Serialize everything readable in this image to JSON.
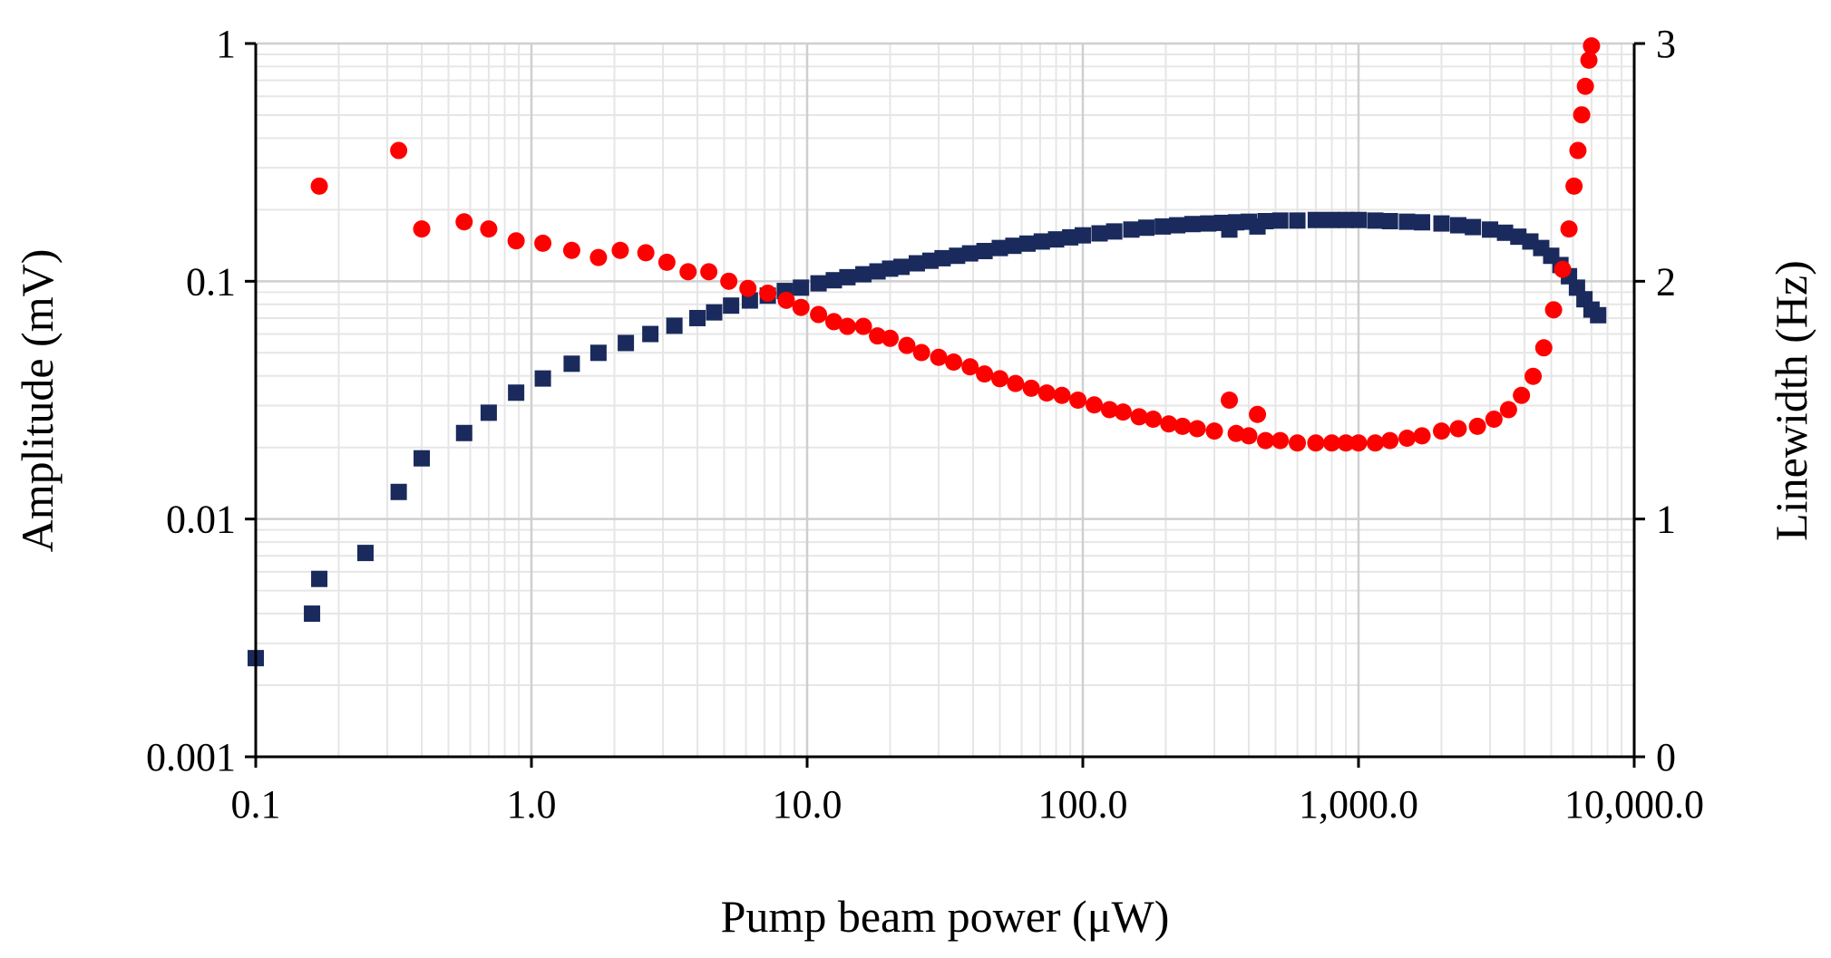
{
  "chart_data": {
    "type": "scatter",
    "title": "",
    "xlabel": "Pump beam power (μW)",
    "ylabel_left": "Amplitude (mV)",
    "ylabel_right": "Linewidth (Hz)",
    "x_scale": "log",
    "xlim": [
      0.1,
      10000
    ],
    "x_ticks": [
      0.1,
      1,
      10,
      100,
      1000,
      10000
    ],
    "x_tick_labels": [
      "0.1",
      "1.0",
      "10.0",
      "100.0",
      "1,000.0",
      "10,000.0"
    ],
    "y_left_scale": "log",
    "ylim_left": [
      0.001,
      1
    ],
    "y_left_ticks": [
      0.001,
      0.01,
      0.1,
      1
    ],
    "y_left_tick_labels": [
      "0.001",
      "0.01",
      "0.1",
      "1"
    ],
    "y_right_scale": "linear",
    "ylim_right": [
      0,
      3
    ],
    "y_right_ticks": [
      0,
      1,
      2,
      3
    ],
    "y_right_tick_labels": [
      "0",
      "1",
      "2",
      "3"
    ],
    "grid": true,
    "series": [
      {
        "name": "Amplitude",
        "axis": "left",
        "marker": "square",
        "color": "#1a2a5c",
        "points": [
          [
            0.1,
            0.0026
          ],
          [
            0.16,
            0.004
          ],
          [
            0.17,
            0.0056
          ],
          [
            0.25,
            0.0072
          ],
          [
            0.33,
            0.013
          ],
          [
            0.4,
            0.018
          ],
          [
            0.57,
            0.023
          ],
          [
            0.7,
            0.028
          ],
          [
            0.88,
            0.034
          ],
          [
            1.1,
            0.039
          ],
          [
            1.4,
            0.045
          ],
          [
            1.75,
            0.05
          ],
          [
            2.2,
            0.055
          ],
          [
            2.7,
            0.06
          ],
          [
            3.3,
            0.065
          ],
          [
            4,
            0.07
          ],
          [
            4.6,
            0.074
          ],
          [
            5.3,
            0.079
          ],
          [
            6.2,
            0.083
          ],
          [
            7.2,
            0.087
          ],
          [
            8.3,
            0.091
          ],
          [
            9.5,
            0.094
          ],
          [
            11,
            0.098
          ],
          [
            12.5,
            0.101
          ],
          [
            14,
            0.104
          ],
          [
            16,
            0.107
          ],
          [
            18,
            0.11
          ],
          [
            20,
            0.113
          ],
          [
            22,
            0.115
          ],
          [
            25,
            0.119
          ],
          [
            28,
            0.122
          ],
          [
            31,
            0.125
          ],
          [
            35,
            0.128
          ],
          [
            39,
            0.131
          ],
          [
            44,
            0.134
          ],
          [
            50,
            0.138
          ],
          [
            56,
            0.141
          ],
          [
            63,
            0.144
          ],
          [
            71,
            0.147
          ],
          [
            80,
            0.15
          ],
          [
            90,
            0.153
          ],
          [
            100,
            0.156
          ],
          [
            115,
            0.159
          ],
          [
            130,
            0.162
          ],
          [
            150,
            0.165
          ],
          [
            170,
            0.168
          ],
          [
            195,
            0.17
          ],
          [
            220,
            0.172
          ],
          [
            250,
            0.174
          ],
          [
            285,
            0.175
          ],
          [
            320,
            0.176
          ],
          [
            340,
            0.165
          ],
          [
            360,
            0.177
          ],
          [
            400,
            0.178
          ],
          [
            430,
            0.17
          ],
          [
            460,
            0.179
          ],
          [
            520,
            0.18
          ],
          [
            600,
            0.18
          ],
          [
            700,
            0.181
          ],
          [
            800,
            0.181
          ],
          [
            900,
            0.181
          ],
          [
            1000,
            0.181
          ],
          [
            1150,
            0.18
          ],
          [
            1300,
            0.179
          ],
          [
            1500,
            0.178
          ],
          [
            1700,
            0.177
          ],
          [
            2000,
            0.175
          ],
          [
            2300,
            0.172
          ],
          [
            2600,
            0.169
          ],
          [
            3000,
            0.165
          ],
          [
            3400,
            0.16
          ],
          [
            3800,
            0.154
          ],
          [
            4200,
            0.147
          ],
          [
            4600,
            0.138
          ],
          [
            5000,
            0.128
          ],
          [
            5400,
            0.117
          ],
          [
            5800,
            0.105
          ],
          [
            6200,
            0.094
          ],
          [
            6600,
            0.084
          ],
          [
            7000,
            0.076
          ],
          [
            7400,
            0.072
          ]
        ]
      },
      {
        "name": "Linewidth",
        "axis": "right",
        "marker": "circle",
        "color": "#ff0000",
        "points": [
          [
            0.17,
            2.4
          ],
          [
            0.33,
            2.55
          ],
          [
            0.4,
            2.22
          ],
          [
            0.57,
            2.25
          ],
          [
            0.7,
            2.22
          ],
          [
            0.88,
            2.17
          ],
          [
            1.1,
            2.16
          ],
          [
            1.4,
            2.13
          ],
          [
            1.75,
            2.1
          ],
          [
            2.1,
            2.13
          ],
          [
            2.6,
            2.12
          ],
          [
            3.1,
            2.08
          ],
          [
            3.7,
            2.04
          ],
          [
            4.4,
            2.04
          ],
          [
            5.2,
            2.0
          ],
          [
            6.1,
            1.97
          ],
          [
            7.2,
            1.95
          ],
          [
            8.4,
            1.92
          ],
          [
            9.5,
            1.89
          ],
          [
            11,
            1.86
          ],
          [
            12.5,
            1.83
          ],
          [
            14,
            1.81
          ],
          [
            16,
            1.81
          ],
          [
            18,
            1.77
          ],
          [
            20,
            1.76
          ],
          [
            23,
            1.73
          ],
          [
            26,
            1.7
          ],
          [
            30,
            1.68
          ],
          [
            34,
            1.66
          ],
          [
            39,
            1.64
          ],
          [
            44,
            1.61
          ],
          [
            50,
            1.59
          ],
          [
            57,
            1.57
          ],
          [
            65,
            1.55
          ],
          [
            74,
            1.53
          ],
          [
            84,
            1.52
          ],
          [
            96,
            1.5
          ],
          [
            110,
            1.48
          ],
          [
            125,
            1.46
          ],
          [
            140,
            1.45
          ],
          [
            160,
            1.43
          ],
          [
            180,
            1.42
          ],
          [
            205,
            1.4
          ],
          [
            230,
            1.39
          ],
          [
            260,
            1.38
          ],
          [
            300,
            1.37
          ],
          [
            340,
            1.5
          ],
          [
            360,
            1.36
          ],
          [
            400,
            1.35
          ],
          [
            430,
            1.44
          ],
          [
            460,
            1.33
          ],
          [
            520,
            1.33
          ],
          [
            600,
            1.32
          ],
          [
            700,
            1.32
          ],
          [
            800,
            1.32
          ],
          [
            900,
            1.32
          ],
          [
            1000,
            1.32
          ],
          [
            1150,
            1.32
          ],
          [
            1300,
            1.33
          ],
          [
            1500,
            1.34
          ],
          [
            1700,
            1.35
          ],
          [
            2000,
            1.37
          ],
          [
            2300,
            1.38
          ],
          [
            2700,
            1.39
          ],
          [
            3100,
            1.42
          ],
          [
            3500,
            1.46
          ],
          [
            3900,
            1.52
          ],
          [
            4300,
            1.6
          ],
          [
            4700,
            1.72
          ],
          [
            5100,
            1.88
          ],
          [
            5500,
            2.05
          ],
          [
            5800,
            2.22
          ],
          [
            6050,
            2.4
          ],
          [
            6250,
            2.55
          ],
          [
            6450,
            2.7
          ],
          [
            6650,
            2.82
          ],
          [
            6850,
            2.93
          ],
          [
            7000,
            2.99
          ]
        ]
      }
    ]
  }
}
